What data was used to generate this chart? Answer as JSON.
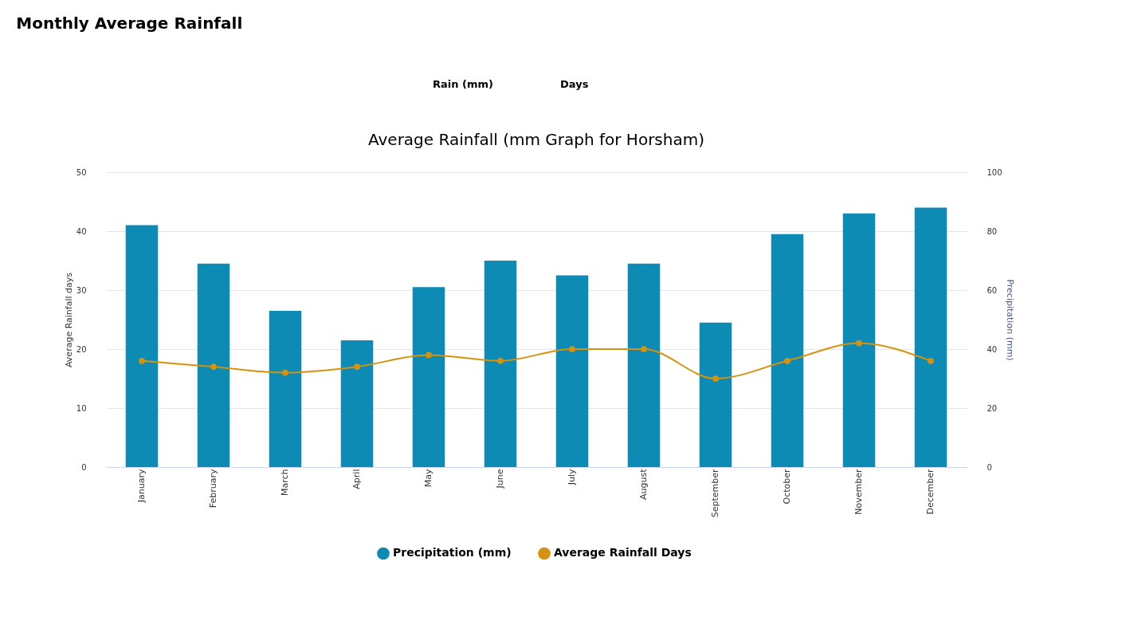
{
  "chart_data": {
    "type": "bar",
    "title": "Monthly Average Rainfall",
    "subtitle": "Average Rainfall (mm Graph for Horsham)",
    "ylabel": "Average Rainfall days",
    "y2label": "Precipitation (mm)",
    "categories": [
      "January",
      "February",
      "March",
      "April",
      "May",
      "June",
      "July",
      "August",
      "September",
      "October",
      "November",
      "December"
    ],
    "series": [
      {
        "name": "Precipitation (mm)",
        "axis": "y2",
        "color": "#0e8bb5",
        "values": [
          82,
          69,
          53,
          43,
          61,
          70,
          65,
          69,
          49,
          79,
          86,
          88
        ]
      },
      {
        "name": "Average Rainfall Days",
        "type": "line",
        "color": "#d4920f",
        "values": [
          18,
          17,
          16,
          17,
          19,
          18,
          20,
          20,
          15,
          18,
          21,
          18
        ]
      }
    ],
    "ylim": [
      0,
      50
    ],
    "yticks": [
      0,
      10,
      20,
      30,
      40,
      50
    ],
    "y2lim": [
      0,
      100
    ],
    "y2ticks": [
      0,
      20,
      40,
      60,
      80,
      100
    ],
    "grid": "y",
    "legend": "bottom",
    "marker": "circle",
    "annotations": [
      "Rain (mm)",
      "Days"
    ]
  }
}
